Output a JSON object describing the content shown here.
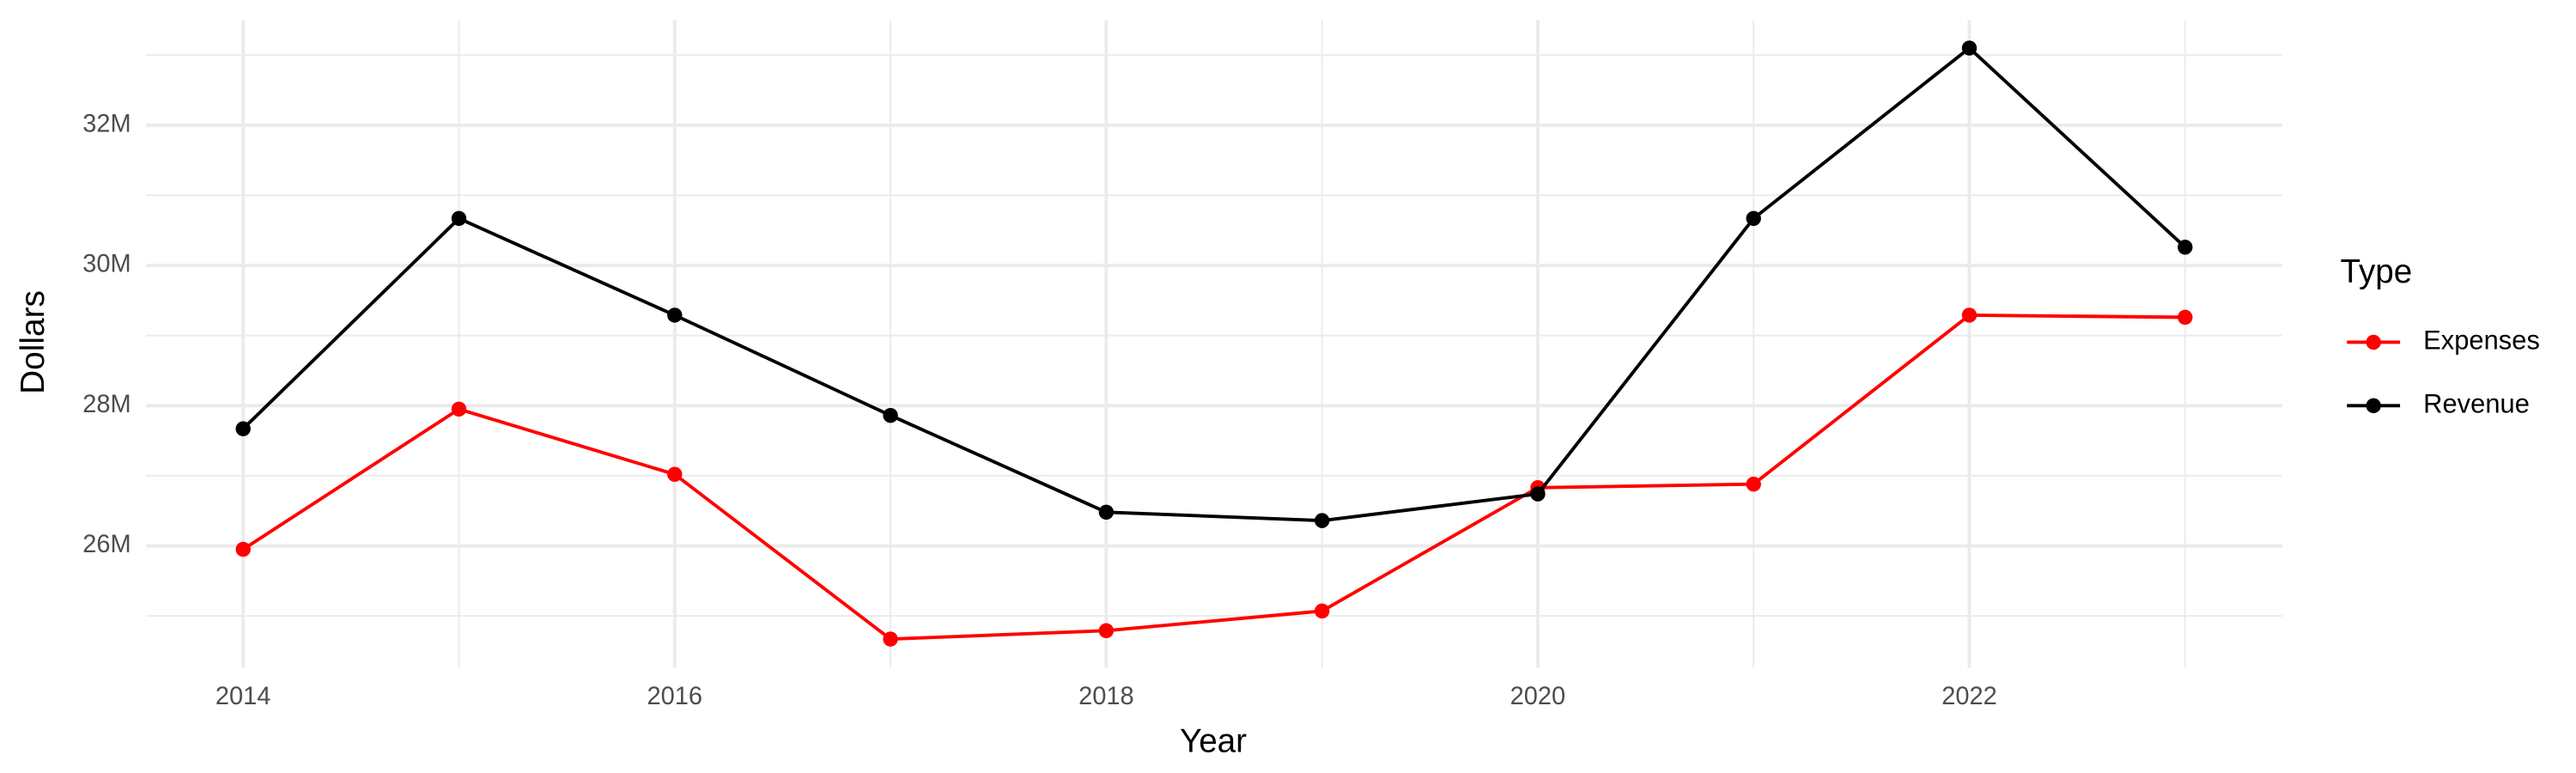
{
  "chart_data": {
    "type": "line",
    "x_label": "Year",
    "y_label": "Dollars",
    "legend_title": "Type",
    "x": [
      2014,
      2015,
      2016,
      2017,
      2018,
      2019,
      2020,
      2021,
      2022,
      2023
    ],
    "series": [
      {
        "name": "Expenses",
        "color": "#ff0000",
        "values": [
          25950000,
          27950000,
          27020000,
          24670000,
          24790000,
          25070000,
          26830000,
          26880000,
          29290000,
          29260000
        ]
      },
      {
        "name": "Revenue",
        "color": "#000000",
        "values": [
          27670000,
          30670000,
          29290000,
          27860000,
          26480000,
          26360000,
          26740000,
          30670000,
          33100000,
          30260000
        ]
      }
    ],
    "xlim": [
      2013.55,
      2023.45
    ],
    "xticks": [
      2014,
      2016,
      2018,
      2020,
      2022
    ],
    "ylim": [
      24260000,
      33500000
    ],
    "yticks": [
      {
        "value": 26000000,
        "label": "26M"
      },
      {
        "value": 28000000,
        "label": "28M"
      },
      {
        "value": 30000000,
        "label": "30M"
      },
      {
        "value": 32000000,
        "label": "32M"
      }
    ],
    "grid": true,
    "legend_position": "right"
  }
}
